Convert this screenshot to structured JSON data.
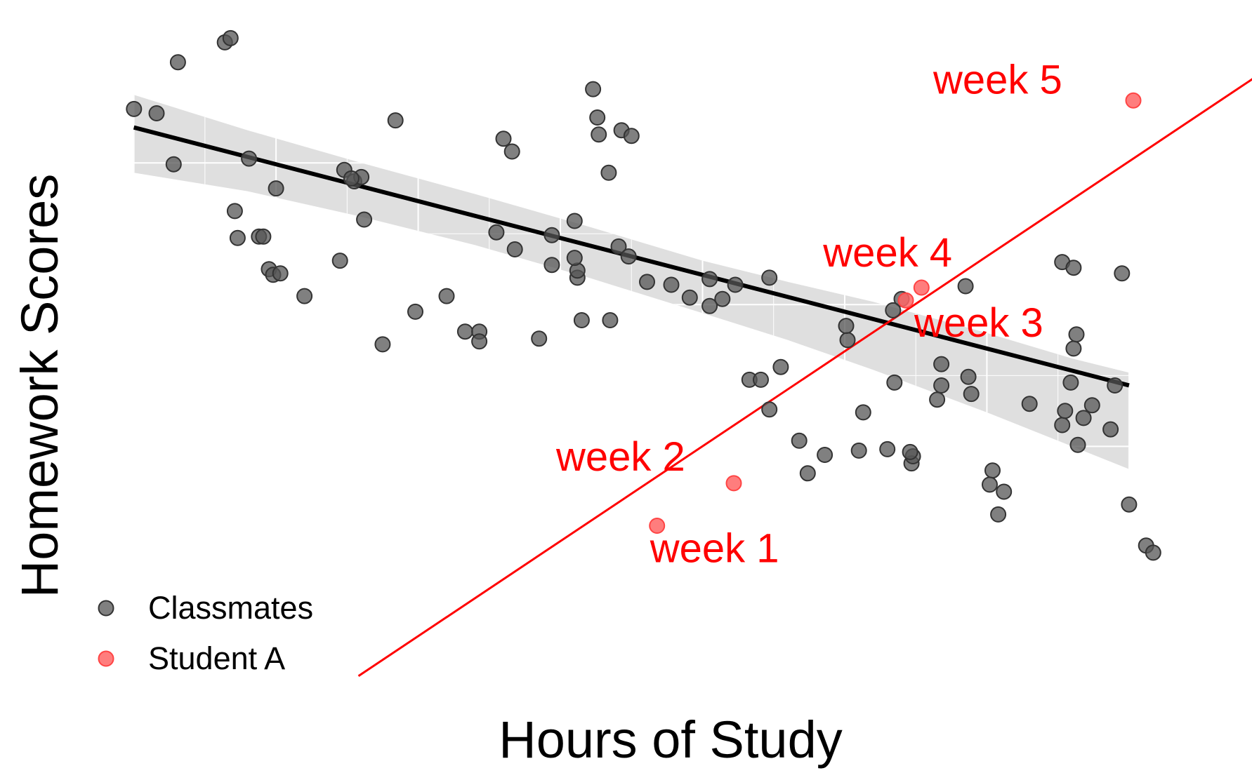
{
  "chart_data": {
    "type": "scatter",
    "title": "",
    "xlabel": "Hours of Study",
    "ylabel": "Homework Scores",
    "xlim": [
      -0.25,
      7.85
    ],
    "ylim": [
      -0.75,
      4.05
    ],
    "grid": true,
    "legend": "bottom-left",
    "colors": {
      "classmates": "#555555",
      "student": "#ff6666",
      "student_line": "#ff0000",
      "fit": "#000000",
      "band": "#d9d9d9"
    },
    "series": [
      {
        "name": "Classmates",
        "x": [
          0.001,
          0.16,
          0.31,
          0.28,
          0.64,
          0.68,
          0.81,
          1.0,
          0.71,
          0.73,
          0.88,
          0.95,
          0.91,
          0.98,
          1.03,
          1.2,
          1.45,
          1.48,
          1.55,
          1.62,
          1.6,
          1.53,
          1.75,
          1.84,
          1.98,
          2.2,
          2.33,
          2.43,
          2.43,
          2.66,
          2.6,
          2.55,
          2.68,
          2.85,
          2.94,
          3.23,
          3.27,
          3.15,
          2.94,
          3.1,
          3.34,
          3.12,
          3.12,
          3.1,
          3.41,
          3.35,
          3.43,
          3.5,
          3.48,
          3.61,
          3.26,
          3.78,
          3.91,
          4.14,
          4.05,
          4.05,
          4.23,
          4.33,
          4.41,
          4.47,
          4.68,
          4.74,
          4.86,
          4.55,
          4.47,
          5.02,
          5.01,
          5.1,
          5.13,
          5.4,
          5.68,
          5.65,
          5.68,
          5.47,
          5.3,
          5.48,
          5.46,
          5.35,
          5.34,
          5.89,
          5.87,
          5.85,
          6.04,
          6.02,
          6.08,
          6.12,
          6.3,
          6.53,
          6.53,
          6.59,
          6.61,
          6.61,
          6.63,
          6.68,
          6.74,
          6.87,
          6.9,
          6.95,
          7.0,
          7.12,
          7.17,
          6.55,
          6.64
        ],
        "y": [
          3.38,
          3.35,
          3.71,
          2.99,
          3.85,
          3.88,
          3.03,
          2.82,
          2.66,
          2.47,
          2.48,
          2.25,
          2.48,
          2.21,
          2.22,
          2.06,
          2.31,
          2.95,
          2.87,
          2.6,
          2.9,
          2.89,
          1.72,
          3.3,
          1.95,
          2.06,
          1.81,
          1.81,
          1.74,
          3.08,
          3.17,
          2.51,
          2.39,
          1.76,
          2.28,
          3.52,
          3.2,
          1.89,
          2.49,
          2.59,
          2.93,
          2.19,
          2.24,
          2.33,
          2.41,
          1.89,
          3.23,
          3.19,
          2.34,
          2.16,
          3.32,
          2.14,
          2.05,
          2.04,
          2.18,
          1.99,
          2.14,
          1.47,
          1.47,
          1.26,
          1.04,
          0.81,
          0.94,
          1.56,
          2.19,
          1.75,
          1.85,
          0.97,
          1.24,
          2.04,
          1.58,
          1.33,
          1.43,
          0.88,
          0.98,
          0.93,
          0.96,
          1.45,
          1.96,
          1.37,
          1.49,
          2.13,
          0.83,
          0.73,
          0.52,
          0.68,
          1.3,
          1.15,
          2.3,
          1.45,
          1.69,
          2.26,
          1.79,
          1.2,
          1.29,
          1.12,
          1.43,
          2.22,
          0.59,
          0.3,
          0.25,
          1.25,
          1.01
        ],
        "color": "#555555"
      },
      {
        "name": "Student A",
        "x": [
          3.68,
          4.22,
          5.43,
          5.54,
          7.03
        ],
        "y": [
          0.44,
          0.74,
          2.03,
          2.12,
          3.44
        ],
        "labels": [
          "week 1",
          "week 2",
          "week 3",
          "week 4",
          "week 5"
        ],
        "color": "#ff6666"
      }
    ],
    "legend_entries": [
      "Classmates",
      "Student A"
    ],
    "annotations": [
      "week 1",
      "week 2",
      "week 3",
      "week 4",
      "week 5"
    ],
    "fit_line": {
      "intercept": 3.25,
      "slope": -0.26,
      "x": [
        0.0,
        7.0
      ]
    },
    "confidence_band": {
      "x": [
        0.0,
        0.8,
        1.6,
        2.4,
        3.2,
        4.0,
        4.6,
        5.2,
        6.0,
        6.6,
        7.0
      ],
      "lower": [
        2.93,
        2.8,
        2.62,
        2.42,
        2.19,
        1.94,
        1.75,
        1.54,
        1.24,
        1.0,
        0.84
      ],
      "upper": [
        3.48,
        3.23,
        3.0,
        2.78,
        2.55,
        2.31,
        2.16,
        2.02,
        1.8,
        1.62,
        1.52
      ]
    },
    "student_line": {
      "x": [
        1.58,
        8.0
      ],
      "y": [
        -0.62,
        3.68
      ]
    }
  }
}
